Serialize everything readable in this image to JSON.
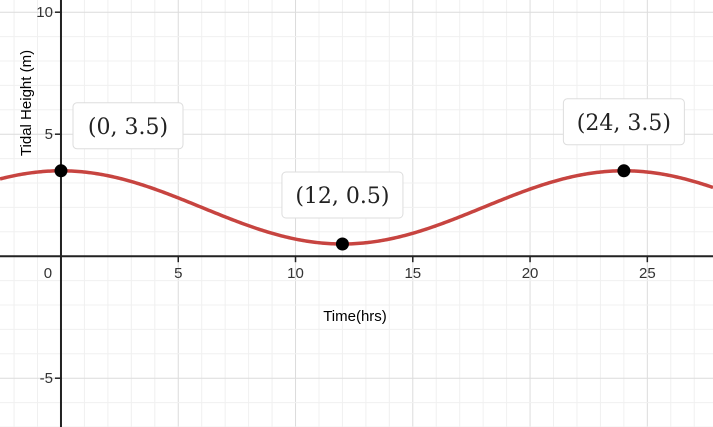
{
  "chart_data": {
    "type": "line",
    "title": "",
    "xlabel": "Time(hrs)",
    "ylabel": "Tidal Height (m)",
    "xlim": [
      -2.6,
      27.8
    ],
    "ylim": [
      -7,
      10.5
    ],
    "x_ticks": [
      0,
      5,
      10,
      15,
      20,
      25
    ],
    "x_tick_labels": [
      "0",
      "5",
      "10",
      "15",
      "20",
      "25"
    ],
    "y_ticks": [
      -5,
      5,
      10
    ],
    "y_tick_labels": [
      "-5",
      "5",
      "10"
    ],
    "grid": true,
    "series": [
      {
        "color": "#c74440",
        "function": "2 + 1.5*cos(pi*x/12)",
        "x": [
          -2.6,
          0,
          3,
          6,
          9,
          12,
          15,
          18,
          21,
          24,
          27.8
        ],
        "y": [
          3.31,
          3.5,
          3.06,
          2.0,
          0.94,
          0.5,
          0.94,
          2.0,
          3.06,
          3.5,
          3.12
        ]
      }
    ],
    "points": [
      {
        "x": 0,
        "y": 3.5,
        "label": "(0, 3.5)"
      },
      {
        "x": 12,
        "y": 0.5,
        "label": "(12, 0.5)"
      },
      {
        "x": 24,
        "y": 3.5,
        "label": "(24, 3.5)"
      }
    ]
  }
}
